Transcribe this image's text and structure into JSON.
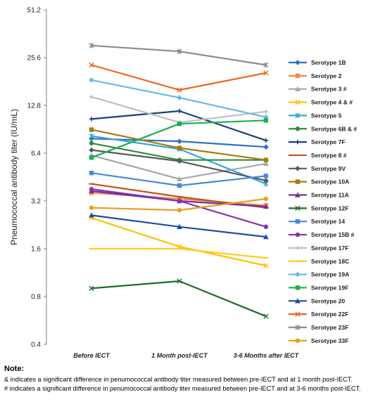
{
  "chart_data": {
    "type": "line",
    "ylabel": "Pneumococcal antibody titer (IU/mL)",
    "y_scale": "log2",
    "ylim": [
      0.4,
      51.2
    ],
    "y_ticks": [
      "0.4",
      "0.8",
      "1.6",
      "3.2",
      "6.4",
      "12.8",
      "25.6",
      "51.2"
    ],
    "grid": false,
    "legend": "right",
    "categories": [
      "Before IECT",
      "1 Month post-IECT",
      "3-6 Months after IECT"
    ],
    "series": [
      {
        "name": "Serotype 1B",
        "color": "#2e6fbf",
        "marker": "diamond",
        "values": [
          7.9,
          7.6,
          7.0
        ]
      },
      {
        "name": "Serotype 2",
        "color": "#f28c4b",
        "marker": "square",
        "values": [
          3.6,
          3.3,
          3.0
        ]
      },
      {
        "name": "Serotype 3 #",
        "color": "#a6a6a6",
        "marker": "triangle",
        "values": [
          6.2,
          4.4,
          5.5
        ]
      },
      {
        "name": "Serotype 4 & #",
        "color": "#ffc000",
        "marker": "x",
        "values": [
          2.5,
          1.65,
          1.25
        ]
      },
      {
        "name": "Serotype 5",
        "color": "#33a6dd",
        "marker": "star",
        "values": [
          8.2,
          6.8,
          4.1
        ]
      },
      {
        "name": "Serotype 6B & #",
        "color": "#2e8b3a",
        "marker": "circle",
        "values": [
          7.4,
          5.8,
          5.8
        ]
      },
      {
        "name": "Serotype 7F",
        "color": "#1f3f7a",
        "marker": "plus",
        "values": [
          10.5,
          11.8,
          7.7
        ]
      },
      {
        "name": "Serotype 8 #",
        "color": "#c0501f",
        "marker": "dash",
        "values": [
          4.1,
          3.4,
          2.9
        ]
      },
      {
        "name": "Serotype 9V",
        "color": "#595959",
        "marker": "diamond",
        "values": [
          6.7,
          5.7,
          4.3
        ]
      },
      {
        "name": "Serotype 10A",
        "color": "#a87b0c",
        "marker": "square",
        "values": [
          9.0,
          6.9,
          5.8
        ]
      },
      {
        "name": "Serotype 11A",
        "color": "#7030a0",
        "marker": "triangle",
        "values": [
          3.7,
          3.2,
          2.95
        ]
      },
      {
        "name": "Serotype 12F",
        "color": "#1e6b2a",
        "marker": "x",
        "values": [
          0.9,
          1.0,
          0.6
        ]
      },
      {
        "name": "Serotype 14",
        "color": "#4a89d6",
        "marker": "square",
        "values": [
          4.8,
          4.0,
          4.6
        ]
      },
      {
        "name": "Serotype 15B #",
        "color": "#8a2fb0",
        "marker": "circle",
        "values": [
          3.8,
          3.2,
          2.2
        ]
      },
      {
        "name": "Serotype 17F",
        "color": "#bfbfbf",
        "marker": "plus",
        "values": [
          14.5,
          10.0,
          11.7
        ]
      },
      {
        "name": "Serotype 18C",
        "color": "#ffcc1f",
        "marker": "dash",
        "values": [
          1.6,
          1.6,
          1.4
        ]
      },
      {
        "name": "Serotype 19A",
        "color": "#6ab8e8",
        "marker": "diamond",
        "values": [
          18.5,
          14.3,
          10.8
        ]
      },
      {
        "name": "Serotype 19F",
        "color": "#1aaf54",
        "marker": "square",
        "values": [
          6.0,
          9.8,
          10.3
        ]
      },
      {
        "name": "Serotype 20",
        "color": "#1e4e9a",
        "marker": "triangle",
        "values": [
          2.6,
          2.2,
          1.9
        ]
      },
      {
        "name": "Serotype 22F",
        "color": "#f0641e",
        "marker": "x",
        "values": [
          23.0,
          16.0,
          20.5
        ]
      },
      {
        "name": "Serotype 23F",
        "color": "#8c8c8c",
        "marker": "star",
        "values": [
          30.5,
          28.0,
          23.0
        ]
      },
      {
        "name": "Serotype 33F",
        "color": "#e6a020",
        "marker": "circle",
        "values": [
          2.9,
          2.8,
          3.3
        ]
      }
    ]
  },
  "note": {
    "title": "Note:",
    "line1": "& indicates a significant difference in penumococcal antibody titer measured between pre-IECT and at 1 month post-IECT.",
    "line2": "# indicates a significant difference in penumococcal antibody titer measured between pre-IECT and at 3-6 months post-IECT."
  }
}
